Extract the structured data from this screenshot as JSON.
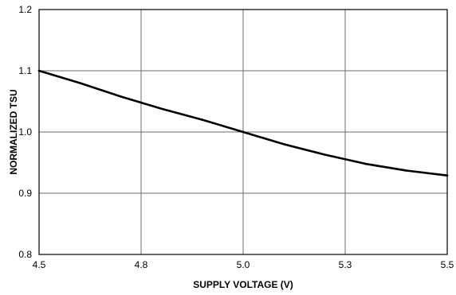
{
  "chart_data": {
    "type": "line",
    "title": "",
    "xlabel": "SUPPLY VOLTAGE (V)",
    "ylabel": "NORMALIZED TSU",
    "xlim": [
      4.5,
      5.5
    ],
    "ylim": [
      0.8,
      1.2
    ],
    "grid": true,
    "x_ticks": [
      {
        "value": 4.5,
        "label": "4.5"
      },
      {
        "value": 4.75,
        "label": "4.8"
      },
      {
        "value": 5.0,
        "label": "5.0"
      },
      {
        "value": 5.25,
        "label": "5.3"
      },
      {
        "value": 5.5,
        "label": "5.5"
      }
    ],
    "y_ticks": [
      {
        "value": 0.8,
        "label": "0.8"
      },
      {
        "value": 0.9,
        "label": "0.9"
      },
      {
        "value": 1.0,
        "label": "1.0"
      },
      {
        "value": 1.1,
        "label": "1.1"
      },
      {
        "value": 1.2,
        "label": "1.2"
      }
    ],
    "series": [
      {
        "x": [
          4.5,
          4.6,
          4.7,
          4.8,
          4.9,
          5.0,
          5.1,
          5.2,
          5.3,
          5.4,
          5.5
        ],
        "y": [
          1.1,
          1.08,
          1.058,
          1.038,
          1.02,
          1.0,
          0.98,
          0.963,
          0.948,
          0.937,
          0.929
        ]
      }
    ]
  }
}
